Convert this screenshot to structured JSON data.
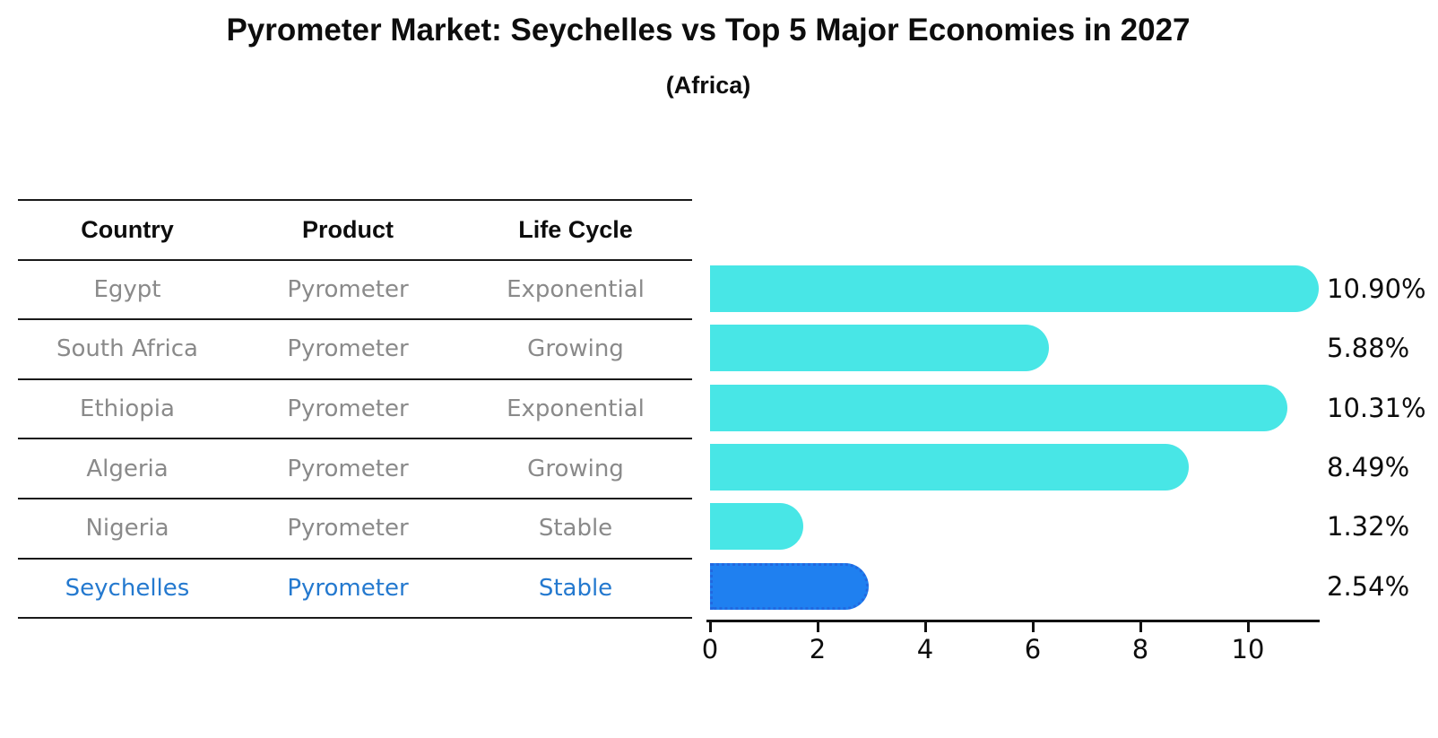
{
  "header": {
    "title": "Pyrometer Market: Seychelles vs Top 5 Major Economies in 2027",
    "subtitle": "(Africa)"
  },
  "table": {
    "headers": {
      "country": "Country",
      "product": "Product",
      "life_cycle": "Life Cycle"
    },
    "rows": [
      {
        "country": "Egypt",
        "product": "Pyrometer",
        "life_cycle": "Exponential"
      },
      {
        "country": "South Africa",
        "product": "Pyrometer",
        "life_cycle": "Growing"
      },
      {
        "country": "Ethiopia",
        "product": "Pyrometer",
        "life_cycle": "Exponential"
      },
      {
        "country": "Algeria",
        "product": "Pyrometer",
        "life_cycle": "Growing"
      },
      {
        "country": "Nigeria",
        "product": "Pyrometer",
        "life_cycle": "Stable"
      },
      {
        "country": "Seychelles",
        "product": "Pyrometer",
        "life_cycle": "Stable"
      }
    ]
  },
  "chart_data": {
    "type": "bar",
    "orientation": "horizontal",
    "title": "Pyrometer Market: Seychelles vs Top 5 Major Economies in 2027",
    "subtitle": "(Africa)",
    "categories": [
      "Egypt",
      "South Africa",
      "Ethiopia",
      "Algeria",
      "Nigeria",
      "Seychelles"
    ],
    "values": [
      10.9,
      5.88,
      10.31,
      8.49,
      1.32,
      2.54
    ],
    "value_labels": [
      "10.90%",
      "5.88%",
      "10.31%",
      "8.49%",
      "1.32%",
      "2.54%"
    ],
    "x_ticks": [
      "0",
      "2",
      "4",
      "6",
      "8",
      "10"
    ],
    "xlim": [
      0,
      11.4
    ],
    "grid": false,
    "legend": "none",
    "highlight_index": 5,
    "colors": {
      "bar": "#48e6e6",
      "highlight_bar": "#1f80f0",
      "highlight_border": "#2268e0",
      "label_text": "#0d0d0d",
      "row_text": "#8a8a8a",
      "highlight_text": "#2479cf"
    }
  }
}
